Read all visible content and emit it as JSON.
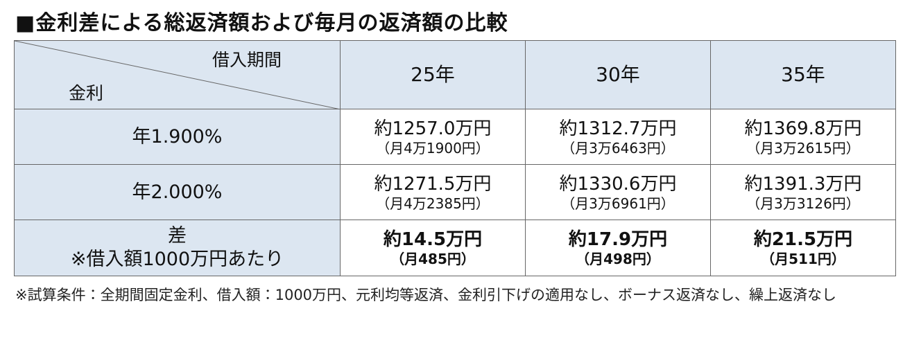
{
  "title": "■金利差による総返済額および毎月の返済額の比較",
  "table": {
    "corner": {
      "column_label": "借入期間",
      "row_label": "金利"
    },
    "columns": [
      "25年",
      "30年",
      "35年"
    ],
    "rows": [
      {
        "label": [
          "年1.900%"
        ],
        "cells": [
          {
            "total": "約1257.0万円",
            "monthly": "（月4万1900円）"
          },
          {
            "total": "約1312.7万円",
            "monthly": "（月3万6463円）"
          },
          {
            "total": "約1369.8万円",
            "monthly": "（月3万2615円）"
          }
        ]
      },
      {
        "label": [
          "年2.000%"
        ],
        "cells": [
          {
            "total": "約1271.5万円",
            "monthly": "（月4万2385円）"
          },
          {
            "total": "約1330.6万円",
            "monthly": "（月3万6961円）"
          },
          {
            "total": "約1391.3万円",
            "monthly": "（月3万3126円）"
          }
        ]
      },
      {
        "label": [
          "差",
          "※借入額1000万円あたり"
        ],
        "cells": [
          {
            "total": "約14.5万円",
            "monthly": "（月485円）"
          },
          {
            "total": "約17.9万円",
            "monthly": "（月498円）"
          },
          {
            "total": "約21.5万円",
            "monthly": "（月511円）"
          }
        ]
      }
    ]
  },
  "footnote": "※試算条件：全期間固定金利、借入額：1000万円、元利均等返済、金利引下げの適用なし、ボーナス返済なし、繰上返済なし"
}
